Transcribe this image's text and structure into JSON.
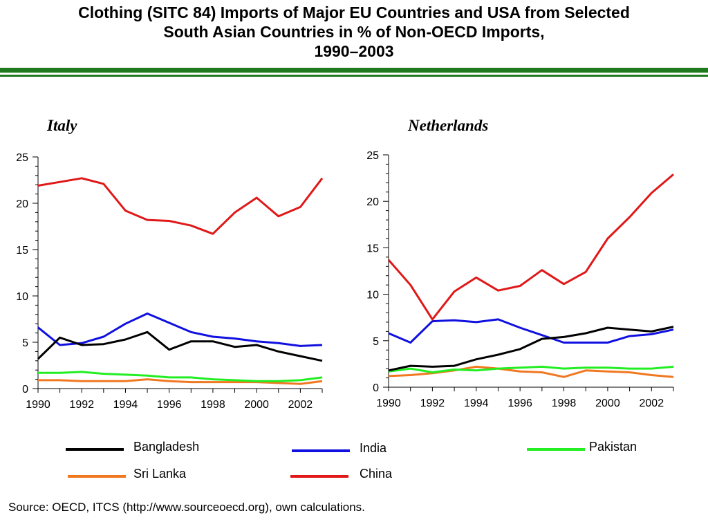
{
  "title": {
    "line1": "Clothing (SITC 84) Imports of Major EU Countries and USA from Selected",
    "line2": "South Asian Countries in % of Non-OECD Imports,",
    "line3": "1990–2003"
  },
  "colors": {
    "rule": "#1f7a1f",
    "Bangladesh": "#000000",
    "India": "#1010e0",
    "Pakistan": "#22ee22",
    "Sri Lanka": "#f07820",
    "China": "#e01818"
  },
  "source": "Source: OECD, ITCS (http://www.sourceoecd.org), own calculations.",
  "legend": [
    {
      "name": "Bangladesh",
      "color": "#000000"
    },
    {
      "name": "India",
      "color": "#1010e0"
    },
    {
      "name": "Pakistan",
      "color": "#22ee22"
    },
    {
      "name": "Sri Lanka",
      "color": "#f07820"
    },
    {
      "name": "China",
      "color": "#e01818"
    }
  ],
  "chart_data": [
    {
      "type": "line",
      "title": "Italy",
      "x": [
        1990,
        1991,
        1992,
        1993,
        1994,
        1995,
        1996,
        1997,
        1998,
        1999,
        2000,
        2001,
        2002,
        2003
      ],
      "xticks": [
        "1990",
        "1992",
        "1994",
        "1996",
        "1998",
        "2000",
        "2002"
      ],
      "yticks": [
        "0",
        "5",
        "10",
        "15",
        "20",
        "25"
      ],
      "ylim": [
        0,
        25
      ],
      "series": [
        {
          "name": "Bangladesh",
          "values": [
            3.2,
            5.5,
            4.7,
            4.8,
            5.3,
            6.1,
            4.2,
            5.1,
            5.1,
            4.5,
            4.7,
            4.0,
            3.5,
            3.0
          ]
        },
        {
          "name": "India",
          "values": [
            6.6,
            4.7,
            4.9,
            5.6,
            7.0,
            8.1,
            7.1,
            6.1,
            5.6,
            5.4,
            5.1,
            4.9,
            4.6,
            4.7
          ]
        },
        {
          "name": "Pakistan",
          "values": [
            1.7,
            1.7,
            1.8,
            1.6,
            1.5,
            1.4,
            1.2,
            1.2,
            1.0,
            0.9,
            0.8,
            0.8,
            0.9,
            1.2
          ]
        },
        {
          "name": "Sri Lanka",
          "values": [
            0.9,
            0.9,
            0.8,
            0.8,
            0.8,
            1.0,
            0.8,
            0.7,
            0.7,
            0.7,
            0.7,
            0.6,
            0.5,
            0.8
          ]
        },
        {
          "name": "China",
          "values": [
            21.9,
            22.3,
            22.7,
            22.1,
            19.2,
            18.2,
            18.1,
            17.6,
            16.7,
            19.0,
            20.6,
            18.6,
            19.6,
            22.7
          ]
        }
      ]
    },
    {
      "type": "line",
      "title": "Netherlands",
      "x": [
        1990,
        1991,
        1992,
        1993,
        1994,
        1995,
        1996,
        1997,
        1998,
        1999,
        2000,
        2001,
        2002,
        2003
      ],
      "xticks": [
        "1990",
        "1992",
        "1994",
        "1996",
        "1998",
        "2000",
        "2002"
      ],
      "yticks": [
        "0",
        "5",
        "10",
        "15",
        "20",
        "25"
      ],
      "ylim": [
        0,
        25
      ],
      "series": [
        {
          "name": "Bangladesh",
          "values": [
            1.8,
            2.3,
            2.2,
            2.3,
            3.0,
            3.5,
            4.1,
            5.2,
            5.4,
            5.8,
            6.4,
            6.2,
            6.0,
            6.5
          ]
        },
        {
          "name": "India",
          "values": [
            5.8,
            4.8,
            7.1,
            7.2,
            7.0,
            7.3,
            6.4,
            5.6,
            4.8,
            4.8,
            4.8,
            5.5,
            5.7,
            6.2
          ]
        },
        {
          "name": "Pakistan",
          "values": [
            1.7,
            2.0,
            1.6,
            1.9,
            1.8,
            2.0,
            2.1,
            2.2,
            2.0,
            2.1,
            2.1,
            2.0,
            2.0,
            2.2
          ]
        },
        {
          "name": "Sri Lanka",
          "values": [
            1.2,
            1.3,
            1.5,
            1.8,
            2.2,
            2.0,
            1.7,
            1.6,
            1.1,
            1.8,
            1.7,
            1.6,
            1.3,
            1.1
          ]
        },
        {
          "name": "China",
          "values": [
            13.7,
            11.0,
            7.3,
            10.3,
            11.8,
            10.4,
            10.9,
            12.6,
            11.1,
            12.4,
            16.0,
            18.3,
            20.9,
            22.9
          ]
        }
      ]
    }
  ]
}
